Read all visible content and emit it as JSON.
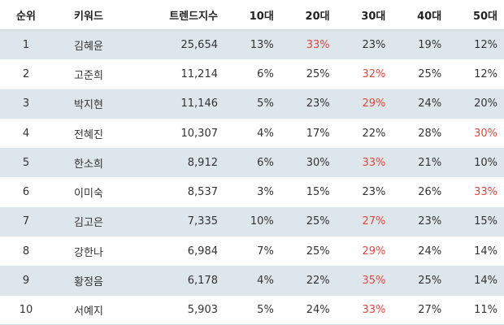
{
  "chart_data": {
    "type": "table",
    "columns": [
      "순위",
      "키워드",
      "트렌드지수",
      "10대",
      "20대",
      "30대",
      "40대",
      "50대"
    ],
    "rows": [
      {
        "rank": "1",
        "keyword": "김혜윤",
        "trend": "25,654",
        "ages": [
          "13%",
          "33%",
          "23%",
          "19%",
          "12%"
        ],
        "highlight": 1
      },
      {
        "rank": "2",
        "keyword": "고준희",
        "trend": "11,214",
        "ages": [
          "6%",
          "25%",
          "32%",
          "25%",
          "12%"
        ],
        "highlight": 2
      },
      {
        "rank": "3",
        "keyword": "박지현",
        "trend": "11,146",
        "ages": [
          "5%",
          "23%",
          "29%",
          "24%",
          "20%"
        ],
        "highlight": 2
      },
      {
        "rank": "4",
        "keyword": "전혜진",
        "trend": "10,307",
        "ages": [
          "4%",
          "17%",
          "22%",
          "28%",
          "30%"
        ],
        "highlight": 4
      },
      {
        "rank": "5",
        "keyword": "한소희",
        "trend": "8,912",
        "ages": [
          "6%",
          "30%",
          "33%",
          "21%",
          "10%"
        ],
        "highlight": 2
      },
      {
        "rank": "6",
        "keyword": "이미숙",
        "trend": "8,537",
        "ages": [
          "3%",
          "15%",
          "23%",
          "26%",
          "33%"
        ],
        "highlight": 4
      },
      {
        "rank": "7",
        "keyword": "김고은",
        "trend": "7,335",
        "ages": [
          "10%",
          "25%",
          "27%",
          "23%",
          "15%"
        ],
        "highlight": 2
      },
      {
        "rank": "8",
        "keyword": "강한나",
        "trend": "6,984",
        "ages": [
          "7%",
          "25%",
          "29%",
          "24%",
          "14%"
        ],
        "highlight": 2
      },
      {
        "rank": "9",
        "keyword": "황정음",
        "trend": "6,178",
        "ages": [
          "4%",
          "22%",
          "35%",
          "25%",
          "14%"
        ],
        "highlight": 2
      },
      {
        "rank": "10",
        "keyword": "서예지",
        "trend": "5,903",
        "ages": [
          "5%",
          "24%",
          "33%",
          "27%",
          "11%"
        ],
        "highlight": 2
      }
    ]
  },
  "colors": {
    "highlight": "#e8453c",
    "stripe": "#dde6eb",
    "text": "#333333"
  }
}
